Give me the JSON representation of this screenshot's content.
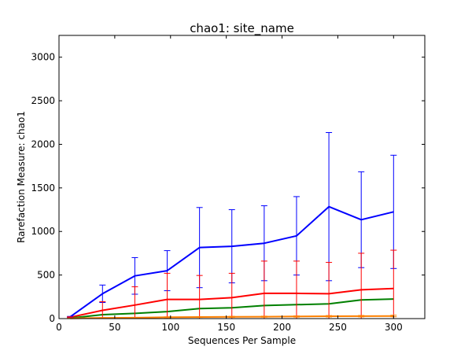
{
  "chart_data": {
    "type": "line",
    "title": "chao1: site_name",
    "xlabel": "Sequences Per Sample",
    "ylabel": "Rarefaction Measure: chao1",
    "xlim": [
      0,
      328
    ],
    "ylim": [
      0,
      3250
    ],
    "xticks": [
      0,
      50,
      100,
      150,
      200,
      250,
      300
    ],
    "yticks": [
      0,
      500,
      1000,
      1500,
      2000,
      2500,
      3000
    ],
    "grid": false,
    "legend": "none",
    "series": [
      {
        "color": "#0000ff",
        "x": [
          10,
          39,
          68,
          97,
          126,
          155,
          184,
          213,
          242,
          271,
          300
        ],
        "y": [
          20,
          285,
          490,
          550,
          815,
          830,
          865,
          950,
          1285,
          1135,
          1225
        ],
        "err": [
          5,
          100,
          210,
          230,
          460,
          420,
          430,
          450,
          850,
          550,
          650
        ]
      },
      {
        "color": "#ff0000",
        "x": [
          10,
          39,
          68,
          97,
          126,
          155,
          184,
          213,
          242,
          271,
          300
        ],
        "y": [
          15,
          95,
          155,
          220,
          220,
          240,
          290,
          290,
          285,
          330,
          345
        ],
        "err": [
          5,
          100,
          210,
          300,
          275,
          280,
          370,
          370,
          360,
          420,
          440
        ]
      },
      {
        "color": "#008000",
        "x": [
          10,
          39,
          68,
          97,
          126,
          155,
          184,
          213,
          242,
          271,
          300
        ],
        "y": [
          5,
          45,
          60,
          80,
          115,
          125,
          150,
          160,
          170,
          215,
          225
        ],
        "err": [
          0,
          0,
          0,
          0,
          0,
          0,
          0,
          0,
          0,
          0,
          0
        ]
      },
      {
        "color": "#ff8000",
        "x": [
          10,
          39,
          68,
          97,
          126,
          155,
          184,
          213,
          242,
          271,
          300
        ],
        "y": [
          3,
          8,
          10,
          15,
          18,
          20,
          22,
          24,
          27,
          28,
          30
        ],
        "err": [
          2,
          3,
          4,
          5,
          5,
          6,
          6,
          7,
          8,
          8,
          9
        ]
      }
    ]
  }
}
